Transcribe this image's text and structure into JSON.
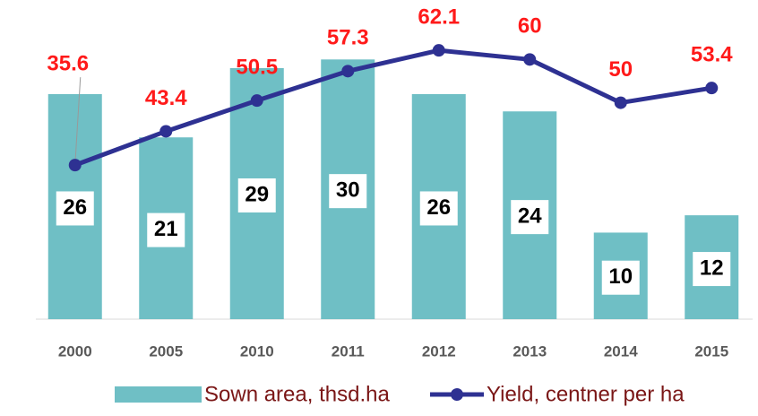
{
  "chart_data": {
    "type": "bar",
    "categories": [
      "2000",
      "2005",
      "2010",
      "2011",
      "2012",
      "2013",
      "2014",
      "2015"
    ],
    "series": [
      {
        "name": "Sown area, thsd.ha",
        "type": "bar",
        "color": "#6fbfc5",
        "values": [
          26,
          21,
          29,
          30,
          26,
          24,
          10,
          12
        ]
      },
      {
        "name": "Yield, centner per ha",
        "type": "line",
        "axis": "y2",
        "color": "#2e3192",
        "values": [
          35.6,
          43.4,
          50.5,
          57.3,
          62.1,
          60,
          50,
          53.4
        ]
      }
    ],
    "ylim": [
      0,
      32
    ],
    "y2lim": [
      0,
      64
    ],
    "legend": "bottom"
  }
}
